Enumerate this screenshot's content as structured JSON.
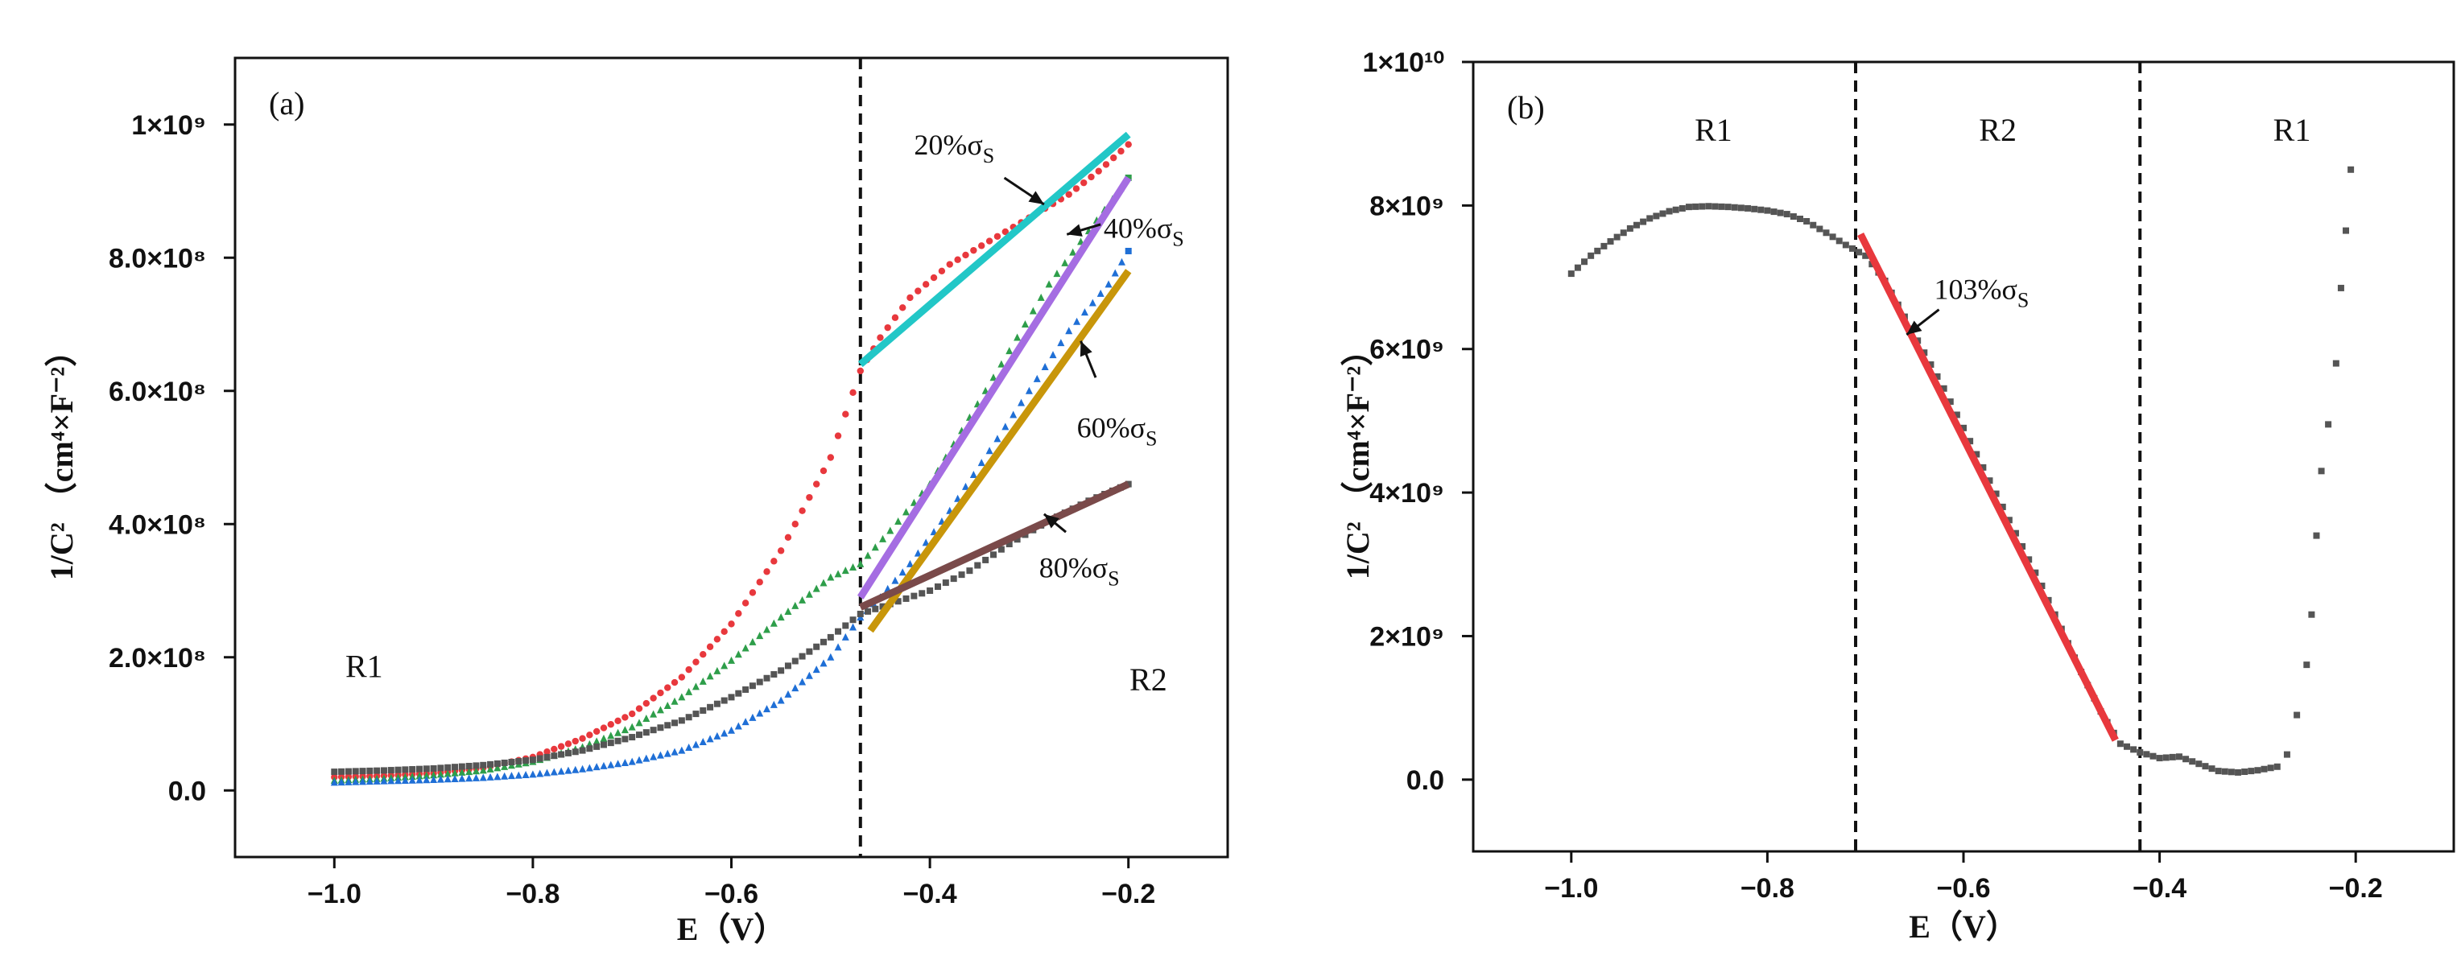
{
  "chart_data": [
    {
      "panel_label": "(a)",
      "type": "scatter",
      "xlabel": "E（V）",
      "ylabel": "1/C² （cm⁴×F⁻²）",
      "xlim": [
        -1.1,
        -0.1
      ],
      "ylim": [
        -100000000.0,
        1100000000.0
      ],
      "xticks": [
        {
          "value": -1.0,
          "label": "−1.0"
        },
        {
          "value": -0.8,
          "label": "−0.8"
        },
        {
          "value": -0.6,
          "label": "−0.6"
        },
        {
          "value": -0.4,
          "label": "−0.4"
        },
        {
          "value": -0.2,
          "label": "−0.2"
        }
      ],
      "yticks": [
        {
          "value": 0,
          "label": "0.0"
        },
        {
          "value": 200000000.0,
          "label": "2.0×10⁸"
        },
        {
          "value": 400000000.0,
          "label": "4.0×10⁸"
        },
        {
          "value": 600000000.0,
          "label": "6.0×10⁸"
        },
        {
          "value": 800000000.0,
          "label": "8.0×10⁸"
        },
        {
          "value": 1000000000.0,
          "label": "1×10⁹"
        }
      ],
      "vlines": [
        -0.47
      ],
      "region_labels": [
        {
          "text": "R1",
          "x": -0.97,
          "y": 170000000.0
        },
        {
          "text": "R2",
          "x": -0.18,
          "y": 150000000.0
        }
      ],
      "series": [
        {
          "name": "20%σS",
          "color": "#e8383d",
          "marker": "circle",
          "points": [
            [
              -1.0,
              20000000.0
            ],
            [
              -0.95,
              22000000.0
            ],
            [
              -0.9,
              26000000.0
            ],
            [
              -0.85,
              34000000.0
            ],
            [
              -0.8,
              50000000.0
            ],
            [
              -0.75,
              78000000.0
            ],
            [
              -0.7,
              115000000.0
            ],
            [
              -0.65,
              170000000.0
            ],
            [
              -0.6,
              250000000.0
            ],
            [
              -0.55,
              360000000.0
            ],
            [
              -0.5,
              500000000.0
            ],
            [
              -0.47,
              630000000.0
            ],
            [
              -0.45,
              680000000.0
            ],
            [
              -0.42,
              740000000.0
            ],
            [
              -0.38,
              790000000.0
            ],
            [
              -0.34,
              825000000.0
            ],
            [
              -0.3,
              860000000.0
            ],
            [
              -0.26,
              895000000.0
            ],
            [
              -0.23,
              930000000.0
            ],
            [
              -0.2,
              970000000.0
            ]
          ]
        },
        {
          "name": "40%σS",
          "color": "#2e9e4a",
          "marker": "triangle",
          "points": [
            [
              -1.0,
              15000000.0
            ],
            [
              -0.95,
              18000000.0
            ],
            [
              -0.9,
              23000000.0
            ],
            [
              -0.85,
              30000000.0
            ],
            [
              -0.8,
              43000000.0
            ],
            [
              -0.75,
              65000000.0
            ],
            [
              -0.7,
              95000000.0
            ],
            [
              -0.65,
              140000000.0
            ],
            [
              -0.6,
              195000000.0
            ],
            [
              -0.55,
              260000000.0
            ],
            [
              -0.5,
              320000000.0
            ],
            [
              -0.47,
              340000000.0
            ],
            [
              -0.44,
              390000000.0
            ],
            [
              -0.4,
              460000000.0
            ],
            [
              -0.36,
              560000000.0
            ],
            [
              -0.32,
              660000000.0
            ],
            [
              -0.28,
              760000000.0
            ],
            [
              -0.24,
              840000000.0
            ],
            [
              -0.2,
              920000000.0
            ]
          ]
        },
        {
          "name": "60%σS",
          "color": "#1f6fd6",
          "marker": "triangle",
          "points": [
            [
              -1.0,
              12000000.0
            ],
            [
              -0.95,
              14000000.0
            ],
            [
              -0.9,
              16000000.0
            ],
            [
              -0.85,
              19000000.0
            ],
            [
              -0.8,
              24000000.0
            ],
            [
              -0.75,
              32000000.0
            ],
            [
              -0.7,
              43000000.0
            ],
            [
              -0.65,
              60000000.0
            ],
            [
              -0.6,
              90000000.0
            ],
            [
              -0.55,
              135000000.0
            ],
            [
              -0.5,
              200000000.0
            ],
            [
              -0.47,
              260000000.0
            ],
            [
              -0.45,
              290000000.0
            ],
            [
              -0.42,
              340000000.0
            ],
            [
              -0.38,
              420000000.0
            ],
            [
              -0.34,
              510000000.0
            ],
            [
              -0.3,
              600000000.0
            ],
            [
              -0.26,
              690000000.0
            ],
            [
              -0.22,
              760000000.0
            ],
            [
              -0.2,
              810000000.0
            ]
          ]
        },
        {
          "name": "80%σS",
          "color": "#555555",
          "marker": "square",
          "points": [
            [
              -1.0,
              28000000.0
            ],
            [
              -0.95,
              30000000.0
            ],
            [
              -0.9,
              33000000.0
            ],
            [
              -0.85,
              38000000.0
            ],
            [
              -0.8,
              46000000.0
            ],
            [
              -0.75,
              60000000.0
            ],
            [
              -0.7,
              80000000.0
            ],
            [
              -0.65,
              105000000.0
            ],
            [
              -0.6,
              140000000.0
            ],
            [
              -0.55,
              180000000.0
            ],
            [
              -0.5,
              230000000.0
            ],
            [
              -0.47,
              265000000.0
            ],
            [
              -0.44,
              280000000.0
            ],
            [
              -0.4,
              300000000.0
            ],
            [
              -0.36,
              330000000.0
            ],
            [
              -0.32,
              370000000.0
            ],
            [
              -0.28,
              405000000.0
            ],
            [
              -0.24,
              435000000.0
            ],
            [
              -0.2,
              460000000.0
            ]
          ]
        }
      ],
      "fit_lines": [
        {
          "color": "#22c7c7",
          "from": [
            -0.47,
            640000000.0
          ],
          "to": [
            -0.2,
            985000000.0
          ]
        },
        {
          "color": "#a56de2",
          "from": [
            -0.47,
            290000000.0
          ],
          "to": [
            -0.2,
            920000000.0
          ]
        },
        {
          "color": "#c8960a",
          "from": [
            -0.46,
            240000000.0
          ],
          "to": [
            -0.2,
            780000000.0
          ]
        },
        {
          "color": "#7a4a4a",
          "from": [
            -0.47,
            275000000.0
          ],
          "to": [
            -0.2,
            460000000.0
          ]
        }
      ],
      "annotations": [
        {
          "text": "20%σS",
          "main": "20%σ",
          "sub": "S",
          "text_x": -0.335,
          "text_y": 955000000.0,
          "anchor": "end",
          "arrow_from": [
            -0.325,
            920000000.0
          ],
          "arrow_to": [
            -0.285,
            880000000.0
          ]
        },
        {
          "text": "40%σS",
          "main": "40%σ",
          "sub": "S",
          "text_x": -0.225,
          "text_y": 830000000.0,
          "anchor": "start",
          "arrow_from": [
            -0.228,
            850000000.0
          ],
          "arrow_to": [
            -0.262,
            835000000.0
          ]
        },
        {
          "text": "60%σS",
          "main": "60%σ",
          "sub": "S",
          "text_x": -0.252,
          "text_y": 530000000.0,
          "anchor": "start",
          "arrow_from": [
            -0.233,
            620000000.0
          ],
          "arrow_to": [
            -0.248,
            675000000.0
          ]
        },
        {
          "text": "80%σS",
          "main": "80%σ",
          "sub": "S",
          "text_x": -0.29,
          "text_y": 320000000.0,
          "anchor": "start",
          "arrow_from": [
            -0.263,
            388000000.0
          ],
          "arrow_to": [
            -0.285,
            415000000.0
          ]
        }
      ]
    },
    {
      "panel_label": "(b)",
      "type": "scatter",
      "xlabel": "E（V）",
      "ylabel": "1/C² （cm⁴×F⁻²）",
      "xlim": [
        -1.1,
        -0.1
      ],
      "ylim": [
        -1000000000.0,
        10000000000.0
      ],
      "xticks": [
        {
          "value": -1.0,
          "label": "−1.0"
        },
        {
          "value": -0.8,
          "label": "−0.8"
        },
        {
          "value": -0.6,
          "label": "−0.6"
        },
        {
          "value": -0.4,
          "label": "−0.4"
        },
        {
          "value": -0.2,
          "label": "−0.2"
        }
      ],
      "yticks": [
        {
          "value": 0,
          "label": "0.0"
        },
        {
          "value": 2000000000.0,
          "label": "2×10⁹"
        },
        {
          "value": 4000000000.0,
          "label": "4×10⁹"
        },
        {
          "value": 6000000000.0,
          "label": "6×10⁹"
        },
        {
          "value": 8000000000.0,
          "label": "8×10⁹"
        },
        {
          "value": 10000000000.0,
          "label": "1×10¹⁰"
        }
      ],
      "vlines": [
        -0.71,
        -0.42
      ],
      "region_labels": [
        {
          "text": "R1",
          "x": -0.855,
          "y": 8900000000.0
        },
        {
          "text": "R2",
          "x": -0.565,
          "y": 8900000000.0
        },
        {
          "text": "R1",
          "x": -0.265,
          "y": 8900000000.0
        }
      ],
      "series": [
        {
          "name": "103%σS",
          "color": "#555555",
          "marker": "square",
          "points": [
            [
              -1.0,
              7050000000.0
            ],
            [
              -0.98,
              7300000000.0
            ],
            [
              -0.96,
              7500000000.0
            ],
            [
              -0.94,
              7680000000.0
            ],
            [
              -0.92,
              7820000000.0
            ],
            [
              -0.9,
              7920000000.0
            ],
            [
              -0.88,
              7980000000.0
            ],
            [
              -0.86,
              7990000000.0
            ],
            [
              -0.84,
              7980000000.0
            ],
            [
              -0.82,
              7960000000.0
            ],
            [
              -0.8,
              7930000000.0
            ],
            [
              -0.78,
              7880000000.0
            ],
            [
              -0.76,
              7780000000.0
            ],
            [
              -0.74,
              7620000000.0
            ],
            [
              -0.72,
              7450000000.0
            ],
            [
              -0.7,
              7300000000.0
            ],
            [
              -0.68,
              6950000000.0
            ],
            [
              -0.66,
              6450000000.0
            ],
            [
              -0.64,
              5950000000.0
            ],
            [
              -0.62,
              5450000000.0
            ],
            [
              -0.6,
              4900000000.0
            ],
            [
              -0.58,
              4350000000.0
            ],
            [
              -0.56,
              3800000000.0
            ],
            [
              -0.54,
              3250000000.0
            ],
            [
              -0.52,
              2700000000.0
            ],
            [
              -0.5,
              2100000000.0
            ],
            [
              -0.48,
              1500000000.0
            ],
            [
              -0.46,
              950000000.0
            ],
            [
              -0.44,
              500000000.0
            ],
            [
              -0.42,
              380000000.0
            ],
            [
              -0.4,
              300000000.0
            ],
            [
              -0.38,
              320000000.0
            ],
            [
              -0.36,
              220000000.0
            ],
            [
              -0.34,
              120000000.0
            ],
            [
              -0.32,
              100000000.0
            ],
            [
              -0.3,
              130000000.0
            ],
            [
              -0.28,
              180000000.0
            ],
            [
              -0.27,
              350000000.0
            ],
            [
              -0.26,
              900000000.0
            ],
            [
              -0.25,
              1600000000.0
            ],
            [
              -0.245,
              2300000000.0
            ],
            [
              -0.24,
              3400000000.0
            ],
            [
              -0.235,
              4300000000.0
            ],
            [
              -0.228,
              4950000000.0
            ],
            [
              -0.22,
              5800000000.0
            ],
            [
              -0.215,
              6850000000.0
            ],
            [
              -0.21,
              7650000000.0
            ],
            [
              -0.205,
              8500000000.0
            ]
          ]
        }
      ],
      "fit_lines": [
        {
          "color": "#e8383d",
          "from": [
            -0.705,
            7600000000.0
          ],
          "to": [
            -0.445,
            550000000.0
          ]
        }
      ],
      "annotations": [
        {
          "text": "103%σS",
          "main": "103%σ",
          "sub": "S",
          "text_x": -0.63,
          "text_y": 6700000000.0,
          "anchor": "start",
          "arrow_from": [
            -0.625,
            6550000000.0
          ],
          "arrow_to": [
            -0.658,
            6200000000.0
          ]
        }
      ]
    }
  ]
}
